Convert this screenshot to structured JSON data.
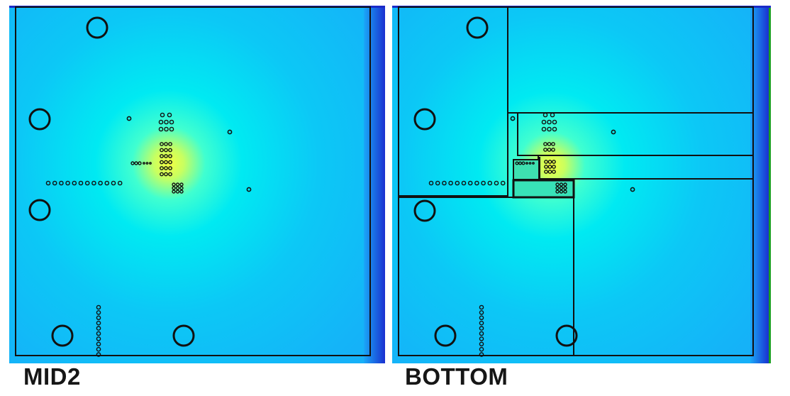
{
  "colors": {
    "hot_spot": "#f2ff40",
    "field_mid": "#00ecf0",
    "field_low": "#10b8f8",
    "edge_dark": "#1020c8",
    "outline": "#111111",
    "right_edge_green": "#1aa020"
  },
  "layers": [
    {
      "id": "mid2",
      "label": "MID2"
    },
    {
      "id": "bottom",
      "label": "BOTTOM"
    }
  ]
}
